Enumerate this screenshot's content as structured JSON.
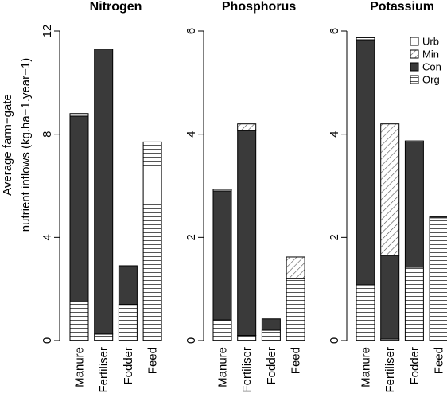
{
  "chart_data": {
    "type": "bar",
    "stacked": true,
    "ylabel_lines": [
      "Average farm−gate",
      "nutrient inflows (kg.ha−1.year−1)"
    ],
    "categories": [
      "Manure",
      "Fertiliser",
      "Fodder",
      "Feed"
    ],
    "legend": {
      "position": "top-right of third panel",
      "entries": [
        {
          "key": "Urb",
          "pattern": "white"
        },
        {
          "key": "Min",
          "pattern": "diagonal"
        },
        {
          "key": "Con",
          "pattern": "solid"
        },
        {
          "key": "Org",
          "pattern": "horizontal"
        }
      ]
    },
    "stack_order_bottom_to_top": [
      "Org",
      "Con",
      "Min",
      "Urb"
    ],
    "colors": {
      "Con": "#3a3a3a",
      "Org_lines": "#555555"
    },
    "panels": [
      {
        "title": "Nitrogen",
        "ylim": [
          0,
          12
        ],
        "yticks": [
          "0",
          "4",
          "8",
          "12"
        ],
        "series": [
          {
            "name": "Org",
            "values": [
              1.5,
              0.25,
              1.4,
              7.7
            ]
          },
          {
            "name": "Con",
            "values": [
              7.2,
              11.05,
              1.5,
              0
            ]
          },
          {
            "name": "Min",
            "values": [
              0,
              0,
              0,
              0
            ]
          },
          {
            "name": "Urb",
            "values": [
              0.1,
              0,
              0,
              0
            ]
          }
        ]
      },
      {
        "title": "Phosphorus",
        "ylim": [
          0,
          6
        ],
        "yticks": [
          "0",
          "2",
          "4",
          "6"
        ],
        "series": [
          {
            "name": "Org",
            "values": [
              0.4,
              0.1,
              0.2,
              1.2
            ]
          },
          {
            "name": "Con",
            "values": [
              2.5,
              3.97,
              0.22,
              0
            ]
          },
          {
            "name": "Min",
            "values": [
              0,
              0.13,
              0,
              0.42
            ]
          },
          {
            "name": "Urb",
            "values": [
              0.03,
              0,
              0,
              0
            ]
          }
        ]
      },
      {
        "title": "Potassium",
        "ylim": [
          0,
          6
        ],
        "yticks": [
          "0",
          "2",
          "4",
          "6"
        ],
        "series": [
          {
            "name": "Org",
            "values": [
              1.08,
              0.03,
              1.42,
              2.38
            ]
          },
          {
            "name": "Con",
            "values": [
              4.75,
              1.62,
              2.43,
              0
            ]
          },
          {
            "name": "Min",
            "values": [
              0,
              2.55,
              0,
              0
            ]
          },
          {
            "name": "Urb",
            "values": [
              0.04,
              0,
              0.02,
              0.02
            ]
          }
        ]
      }
    ]
  }
}
